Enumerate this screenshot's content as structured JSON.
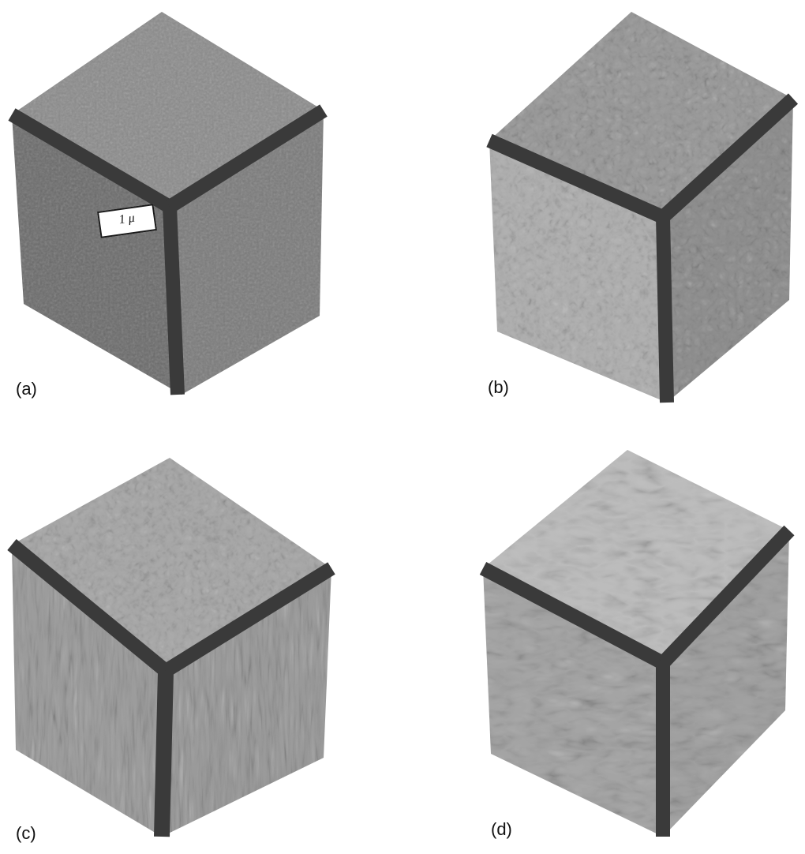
{
  "figure": {
    "panels": [
      {
        "id": "a",
        "label": "(a)",
        "texture": "fine granular mottled cuboids"
      },
      {
        "id": "b",
        "label": "(b)",
        "texture": "regular cuboidal precipitate array"
      },
      {
        "id": "c",
        "label": "(c)",
        "texture": "aligned vertical rafts / plates"
      },
      {
        "id": "d",
        "label": "(d)",
        "texture": "coarsened elongated rafts"
      }
    ],
    "scale_bar_label": "1 μ"
  },
  "colors": {
    "background": "#ffffff",
    "edge_bar": "#3a3a3a",
    "face_top": "#8c8c8c",
    "face_left": "#6e6e6e",
    "face_right": "#7a7a7a"
  }
}
